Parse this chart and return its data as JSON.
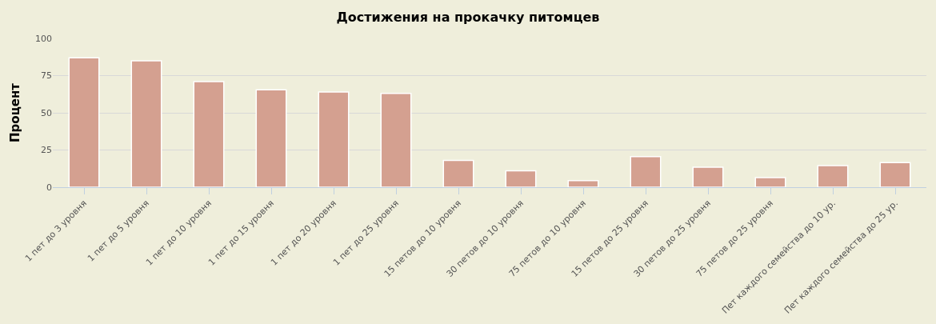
{
  "chart_data": {
    "type": "bar",
    "title": "Достижения на прокачку питомцев",
    "ylabel": "Процент",
    "categories": [
      "1 пет до 3 уровня",
      "1 пет до 5 уровня",
      "1 пет до 10 уровня",
      "1 пет до 15 уровня",
      "1 пет до 20 уровня",
      "1 пет до 25 уровня",
      "15 петов до 10 уровня",
      "30 петов до 10 уровня",
      "75 петов до 10 уровня",
      "15 петов до 25 уровня",
      "30 петов до 25 уровня",
      "75 петов до 25 уровня",
      "Пет каждого семейства до 10 ур.",
      "Пет каждого семейства до 25 ур."
    ],
    "values": [
      87,
      85,
      71,
      65.5,
      64,
      63,
      18,
      11,
      4.5,
      20.5,
      13.5,
      6.5,
      14.5,
      16.5
    ],
    "color": "#d4a090",
    "ylim": [
      0,
      100
    ],
    "yticks": [
      0,
      25,
      50,
      75,
      100
    ],
    "grid": "y"
  }
}
